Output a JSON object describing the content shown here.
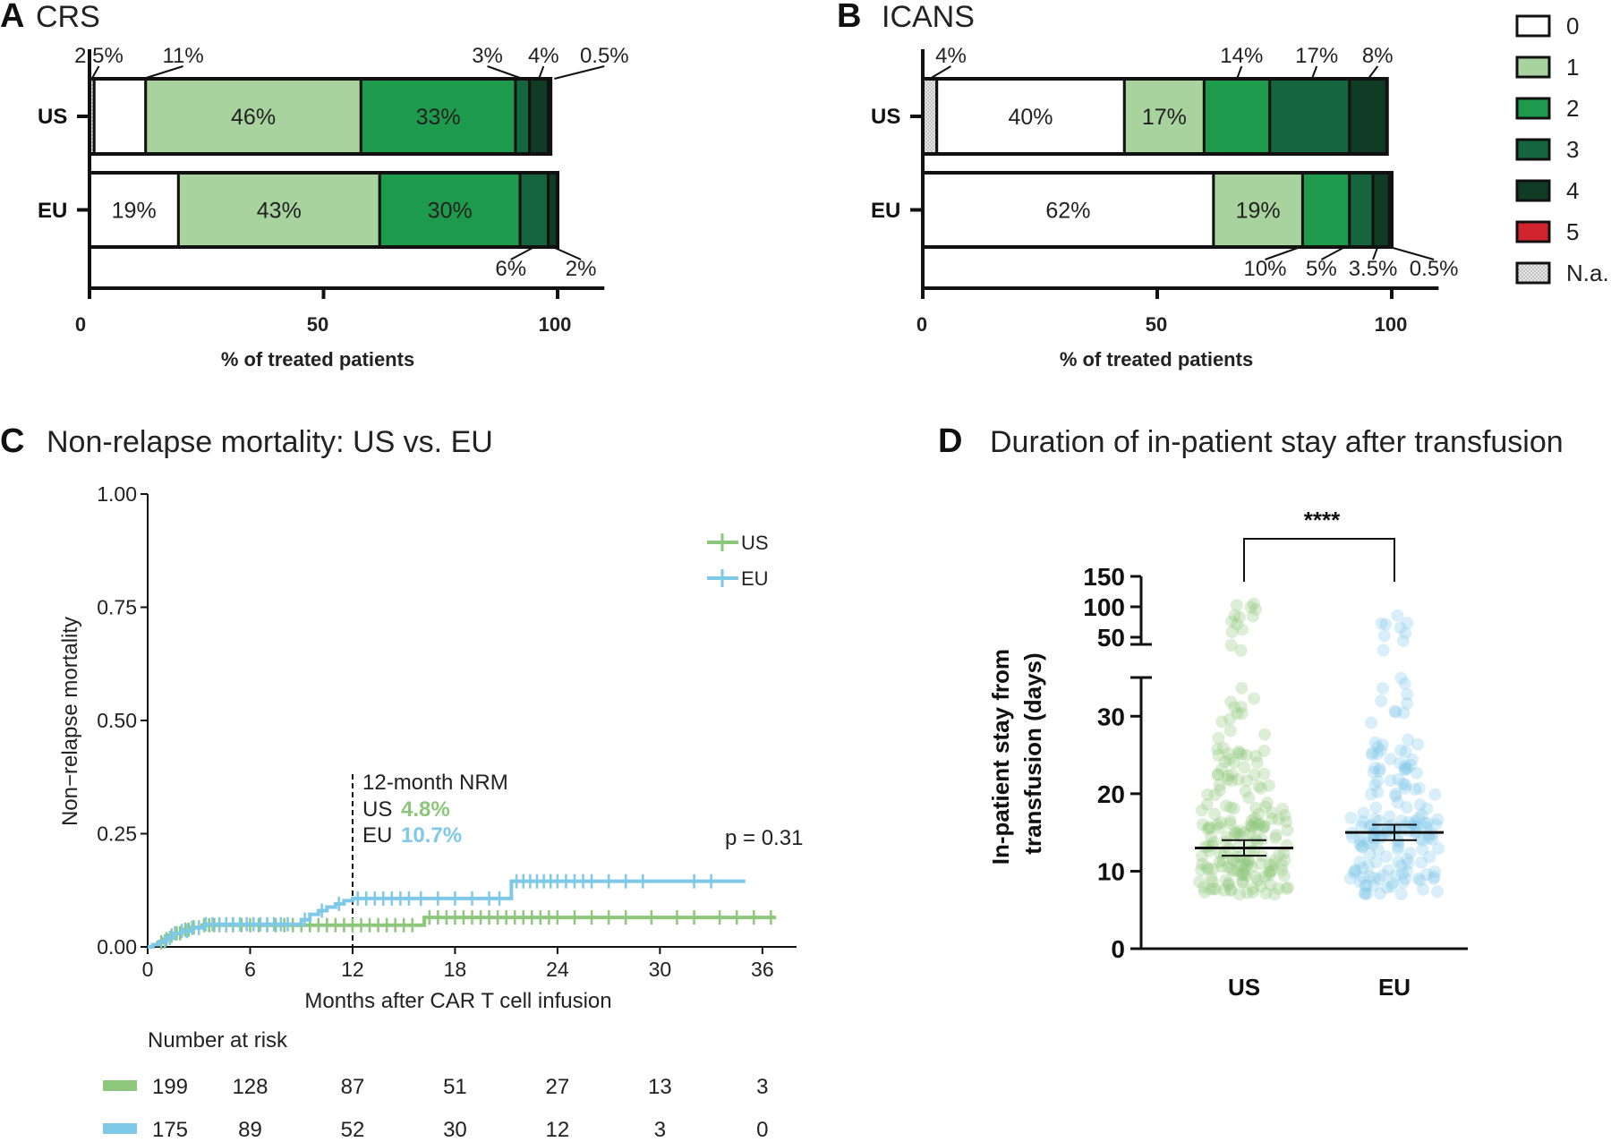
{
  "colors": {
    "g0": "#ffffff",
    "g1": "#a9d39e",
    "g2": "#1d9a4b",
    "g3": "#15663e",
    "g4": "#0f3b24",
    "g5": "#d1242f",
    "na": "#e6e6e6",
    "us": "#8dc77b",
    "eu": "#7ec8e8"
  },
  "chart_data": [
    {
      "panel": "A",
      "type": "bar",
      "orientation": "horizontal-stacked",
      "title": "CRS",
      "xlabel": "% of treated patients",
      "xlim": [
        0,
        100
      ],
      "xticks": [
        "0",
        "50",
        "100"
      ],
      "categories": [
        "US",
        "EU"
      ],
      "series": [
        {
          "name": "N.a.",
          "values": [
            1,
            0
          ]
        },
        {
          "name": "0",
          "values": [
            11,
            19
          ]
        },
        {
          "name": "1",
          "values": [
            46,
            43
          ]
        },
        {
          "name": "2",
          "values": [
            33,
            30
          ]
        },
        {
          "name": "3",
          "values": [
            3,
            6
          ]
        },
        {
          "name": "4",
          "values": [
            4,
            2
          ]
        },
        {
          "name": "5",
          "values": [
            0.5,
            0
          ]
        }
      ],
      "bar_labels": [
        {
          "row": 0,
          "seg": 2,
          "text": "46%"
        },
        {
          "row": 0,
          "seg": 3,
          "text": "33%"
        },
        {
          "row": 1,
          "seg": 1,
          "text": "19%"
        },
        {
          "row": 1,
          "seg": 2,
          "text": "43%"
        },
        {
          "row": 1,
          "seg": 3,
          "text": "30%"
        }
      ],
      "callouts": [
        {
          "row": 0,
          "text": "2.5%",
          "at": 0.5,
          "lx": 2,
          "pos": "top"
        },
        {
          "row": 0,
          "text": "11%",
          "at": 11.5,
          "lx": 20,
          "pos": "top"
        },
        {
          "row": 0,
          "text": "3%",
          "at": 92.5,
          "lx": 85,
          "pos": "top"
        },
        {
          "row": 0,
          "text": "4%",
          "at": 96,
          "lx": 97,
          "pos": "top"
        },
        {
          "row": 0,
          "text": "0.5%",
          "at": 99.3,
          "lx": 110,
          "pos": "top"
        },
        {
          "row": 1,
          "text": "6%",
          "at": 95,
          "lx": 90,
          "pos": "bottom"
        },
        {
          "row": 1,
          "text": "2%",
          "at": 99,
          "lx": 105,
          "pos": "bottom"
        }
      ]
    },
    {
      "panel": "B",
      "type": "bar",
      "orientation": "horizontal-stacked",
      "title": "ICANS",
      "xlabel": "% of treated patients",
      "xlim": [
        0,
        100
      ],
      "xticks": [
        "0",
        "50",
        "100"
      ],
      "categories": [
        "US",
        "EU"
      ],
      "series": [
        {
          "name": "N.a.",
          "values": [
            3,
            0
          ]
        },
        {
          "name": "0",
          "values": [
            40,
            62
          ]
        },
        {
          "name": "1",
          "values": [
            17,
            19
          ]
        },
        {
          "name": "2",
          "values": [
            14,
            10
          ]
        },
        {
          "name": "3",
          "values": [
            17,
            5
          ]
        },
        {
          "name": "4",
          "values": [
            8,
            3.5
          ]
        },
        {
          "name": "5",
          "values": [
            0,
            0.5
          ]
        }
      ],
      "bar_labels": [
        {
          "row": 0,
          "seg": 1,
          "text": "40%"
        },
        {
          "row": 0,
          "seg": 2,
          "text": "17%"
        },
        {
          "row": 1,
          "seg": 1,
          "text": "62%"
        },
        {
          "row": 1,
          "seg": 2,
          "text": "19%"
        }
      ],
      "callouts": [
        {
          "row": 0,
          "text": "4%",
          "at": 1.5,
          "lx": 6,
          "pos": "top"
        },
        {
          "row": 0,
          "text": "14%",
          "at": 67,
          "lx": 68,
          "pos": "top"
        },
        {
          "row": 0,
          "text": "17%",
          "at": 83,
          "lx": 84,
          "pos": "top"
        },
        {
          "row": 0,
          "text": "8%",
          "at": 95,
          "lx": 97,
          "pos": "top"
        },
        {
          "row": 1,
          "text": "10%",
          "at": 80.5,
          "lx": 73,
          "pos": "bottom"
        },
        {
          "row": 1,
          "text": "5%",
          "at": 90,
          "lx": 85,
          "pos": "bottom"
        },
        {
          "row": 1,
          "text": "3.5%",
          "at": 97,
          "lx": 96,
          "pos": "bottom"
        },
        {
          "row": 1,
          "text": "0.5%",
          "at": 99.6,
          "lx": 109,
          "pos": "bottom"
        }
      ]
    },
    {
      "panel": "C",
      "type": "line",
      "subtype": "cumulative-incidence-step",
      "title": "Non-relapse mortality: US vs. EU",
      "xlabel": "Months after CAR T cell infusion",
      "ylabel": "Non−relapse mortality",
      "xlim": [
        0,
        38
      ],
      "ylim": [
        0,
        1
      ],
      "xticks": [
        "0",
        "6",
        "12",
        "18",
        "24",
        "30",
        "36"
      ],
      "yticks": [
        "0.00",
        "0.25",
        "0.50",
        "0.75",
        "1.00"
      ],
      "legend": "top-right",
      "series": [
        {
          "name": "US",
          "steps": [
            [
              0,
              0
            ],
            [
              0.3,
              0.005
            ],
            [
              0.6,
              0.01
            ],
            [
              0.9,
              0.017
            ],
            [
              1.2,
              0.025
            ],
            [
              1.6,
              0.03
            ],
            [
              2.0,
              0.038
            ],
            [
              2.5,
              0.043
            ],
            [
              3.2,
              0.048
            ],
            [
              16,
              0.048
            ],
            [
              16.2,
              0.065
            ],
            [
              36.8,
              0.065
            ]
          ],
          "censor": [
            0.8,
            1.1,
            1.4,
            1.7,
            1.9,
            2.2,
            2.4,
            2.7,
            3.0,
            3.3,
            3.6,
            3.9,
            4.2,
            4.6,
            5.0,
            5.5,
            6.0,
            6.5,
            7.0,
            7.5,
            8.0,
            8.5,
            9.0,
            9.5,
            10.0,
            10.5,
            11.0,
            11.5,
            12.0,
            12.5,
            13.0,
            13.5,
            14.0,
            14.5,
            15.0,
            15.5,
            16.5,
            17.0,
            17.5,
            18.0,
            18.5,
            19.0,
            19.5,
            20.0,
            20.5,
            21.0,
            21.5,
            22.0,
            22.5,
            23.0,
            23.5,
            24.0,
            25.0,
            26.0,
            27.0,
            28.0,
            29.5,
            31.0,
            32.0,
            33.5,
            34.5,
            35.5,
            36.5
          ]
        },
        {
          "name": "EU",
          "steps": [
            [
              0,
              0
            ],
            [
              0.3,
              0.005
            ],
            [
              0.7,
              0.012
            ],
            [
              1.1,
              0.02
            ],
            [
              1.5,
              0.03
            ],
            [
              2.0,
              0.035
            ],
            [
              2.6,
              0.042
            ],
            [
              3.3,
              0.05
            ],
            [
              8.5,
              0.05
            ],
            [
              9.0,
              0.06
            ],
            [
              9.5,
              0.072
            ],
            [
              10.0,
              0.08
            ],
            [
              10.5,
              0.088
            ],
            [
              11.0,
              0.095
            ],
            [
              11.5,
              0.102
            ],
            [
              12.0,
              0.107
            ],
            [
              21.0,
              0.107
            ],
            [
              21.3,
              0.145
            ],
            [
              35.0,
              0.145
            ]
          ],
          "censor": [
            1.0,
            1.3,
            1.6,
            2.0,
            2.3,
            2.6,
            3.0,
            3.4,
            3.8,
            4.2,
            4.6,
            5.0,
            5.4,
            5.8,
            6.2,
            6.6,
            7.0,
            7.4,
            7.8,
            8.2,
            9.2,
            10.2,
            11.2,
            12.3,
            12.8,
            13.3,
            13.8,
            14.3,
            14.8,
            15.3,
            16.0,
            17.0,
            18.0,
            19.0,
            20.0,
            20.6,
            21.6,
            22.0,
            22.4,
            22.8,
            23.2,
            23.6,
            24.0,
            24.5,
            25.0,
            25.5,
            26.0,
            27.0,
            28.0,
            29.0,
            32.0,
            33.0
          ]
        }
      ],
      "annotation": {
        "x": 12,
        "lines": [
          "12-month NRM"
        ],
        "us_label": "US",
        "us_value": "4.8%",
        "eu_label": "EU",
        "eu_value": "10.7%"
      },
      "pvalue": "p = 0.31",
      "risk_table": {
        "title": "Number at risk",
        "rows": [
          {
            "name": "US",
            "values": [
              "199",
              "128",
              "87",
              "51",
              "27",
              "13",
              "3"
            ]
          },
          {
            "name": "EU",
            "values": [
              "175",
              "89",
              "52",
              "30",
              "12",
              "3",
              "0"
            ]
          }
        ]
      }
    },
    {
      "panel": "D",
      "type": "scatter",
      "subtype": "dot-plot-with-median",
      "title": "Duration of in-patient stay after transfusion",
      "ylabel": "In-patient stay from transfusion (days)",
      "categories": [
        "US",
        "EU"
      ],
      "yticks_lower": [
        "0",
        "10",
        "20",
        "30"
      ],
      "yticks_upper": [
        "50",
        "100",
        "150"
      ],
      "ylim_lower": [
        0,
        35
      ],
      "ylim_upper": [
        40,
        150
      ],
      "medians": [
        13,
        15
      ],
      "ci": [
        [
          12,
          14
        ],
        [
          14,
          16
        ]
      ],
      "significance": "****",
      "series": [
        {
          "name": "US",
          "n_points": 199,
          "range": [
            5,
            110
          ]
        },
        {
          "name": "EU",
          "n_points": 175,
          "range": [
            6,
            115
          ]
        }
      ]
    }
  ]
}
